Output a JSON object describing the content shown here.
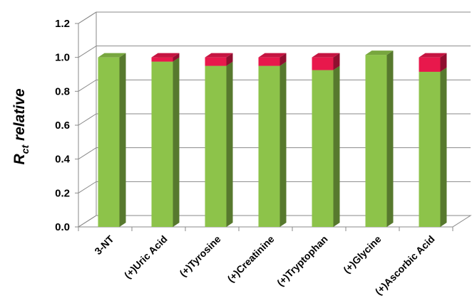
{
  "chart_data": {
    "type": "bar",
    "stacked": true,
    "three_d": true,
    "categories": [
      "3-NT",
      "(+)Uric Acid",
      "(+)Tyrosine",
      "(+)Creatinine",
      "(+)Tryptophan",
      "(+)Glycine",
      "(+)Ascorbic Acid"
    ],
    "series": [
      {
        "values": [
          1.0,
          0.975,
          0.95,
          0.95,
          0.925,
          1.015,
          0.915
        ],
        "color": "#8dc34a"
      },
      {
        "values": [
          0.0,
          0.025,
          0.05,
          0.05,
          0.075,
          0.0,
          0.085
        ],
        "color": "#e8184c"
      }
    ],
    "ylabel": {
      "main": "R",
      "sub": "ct",
      "rest": " relative"
    },
    "xlabel": "",
    "ylim": [
      0,
      1.2
    ],
    "yticks": [
      "0.0",
      "0.2",
      "0.4",
      "0.6",
      "0.8",
      "1.0",
      "1.2"
    ],
    "grid": true,
    "legend": "none"
  }
}
